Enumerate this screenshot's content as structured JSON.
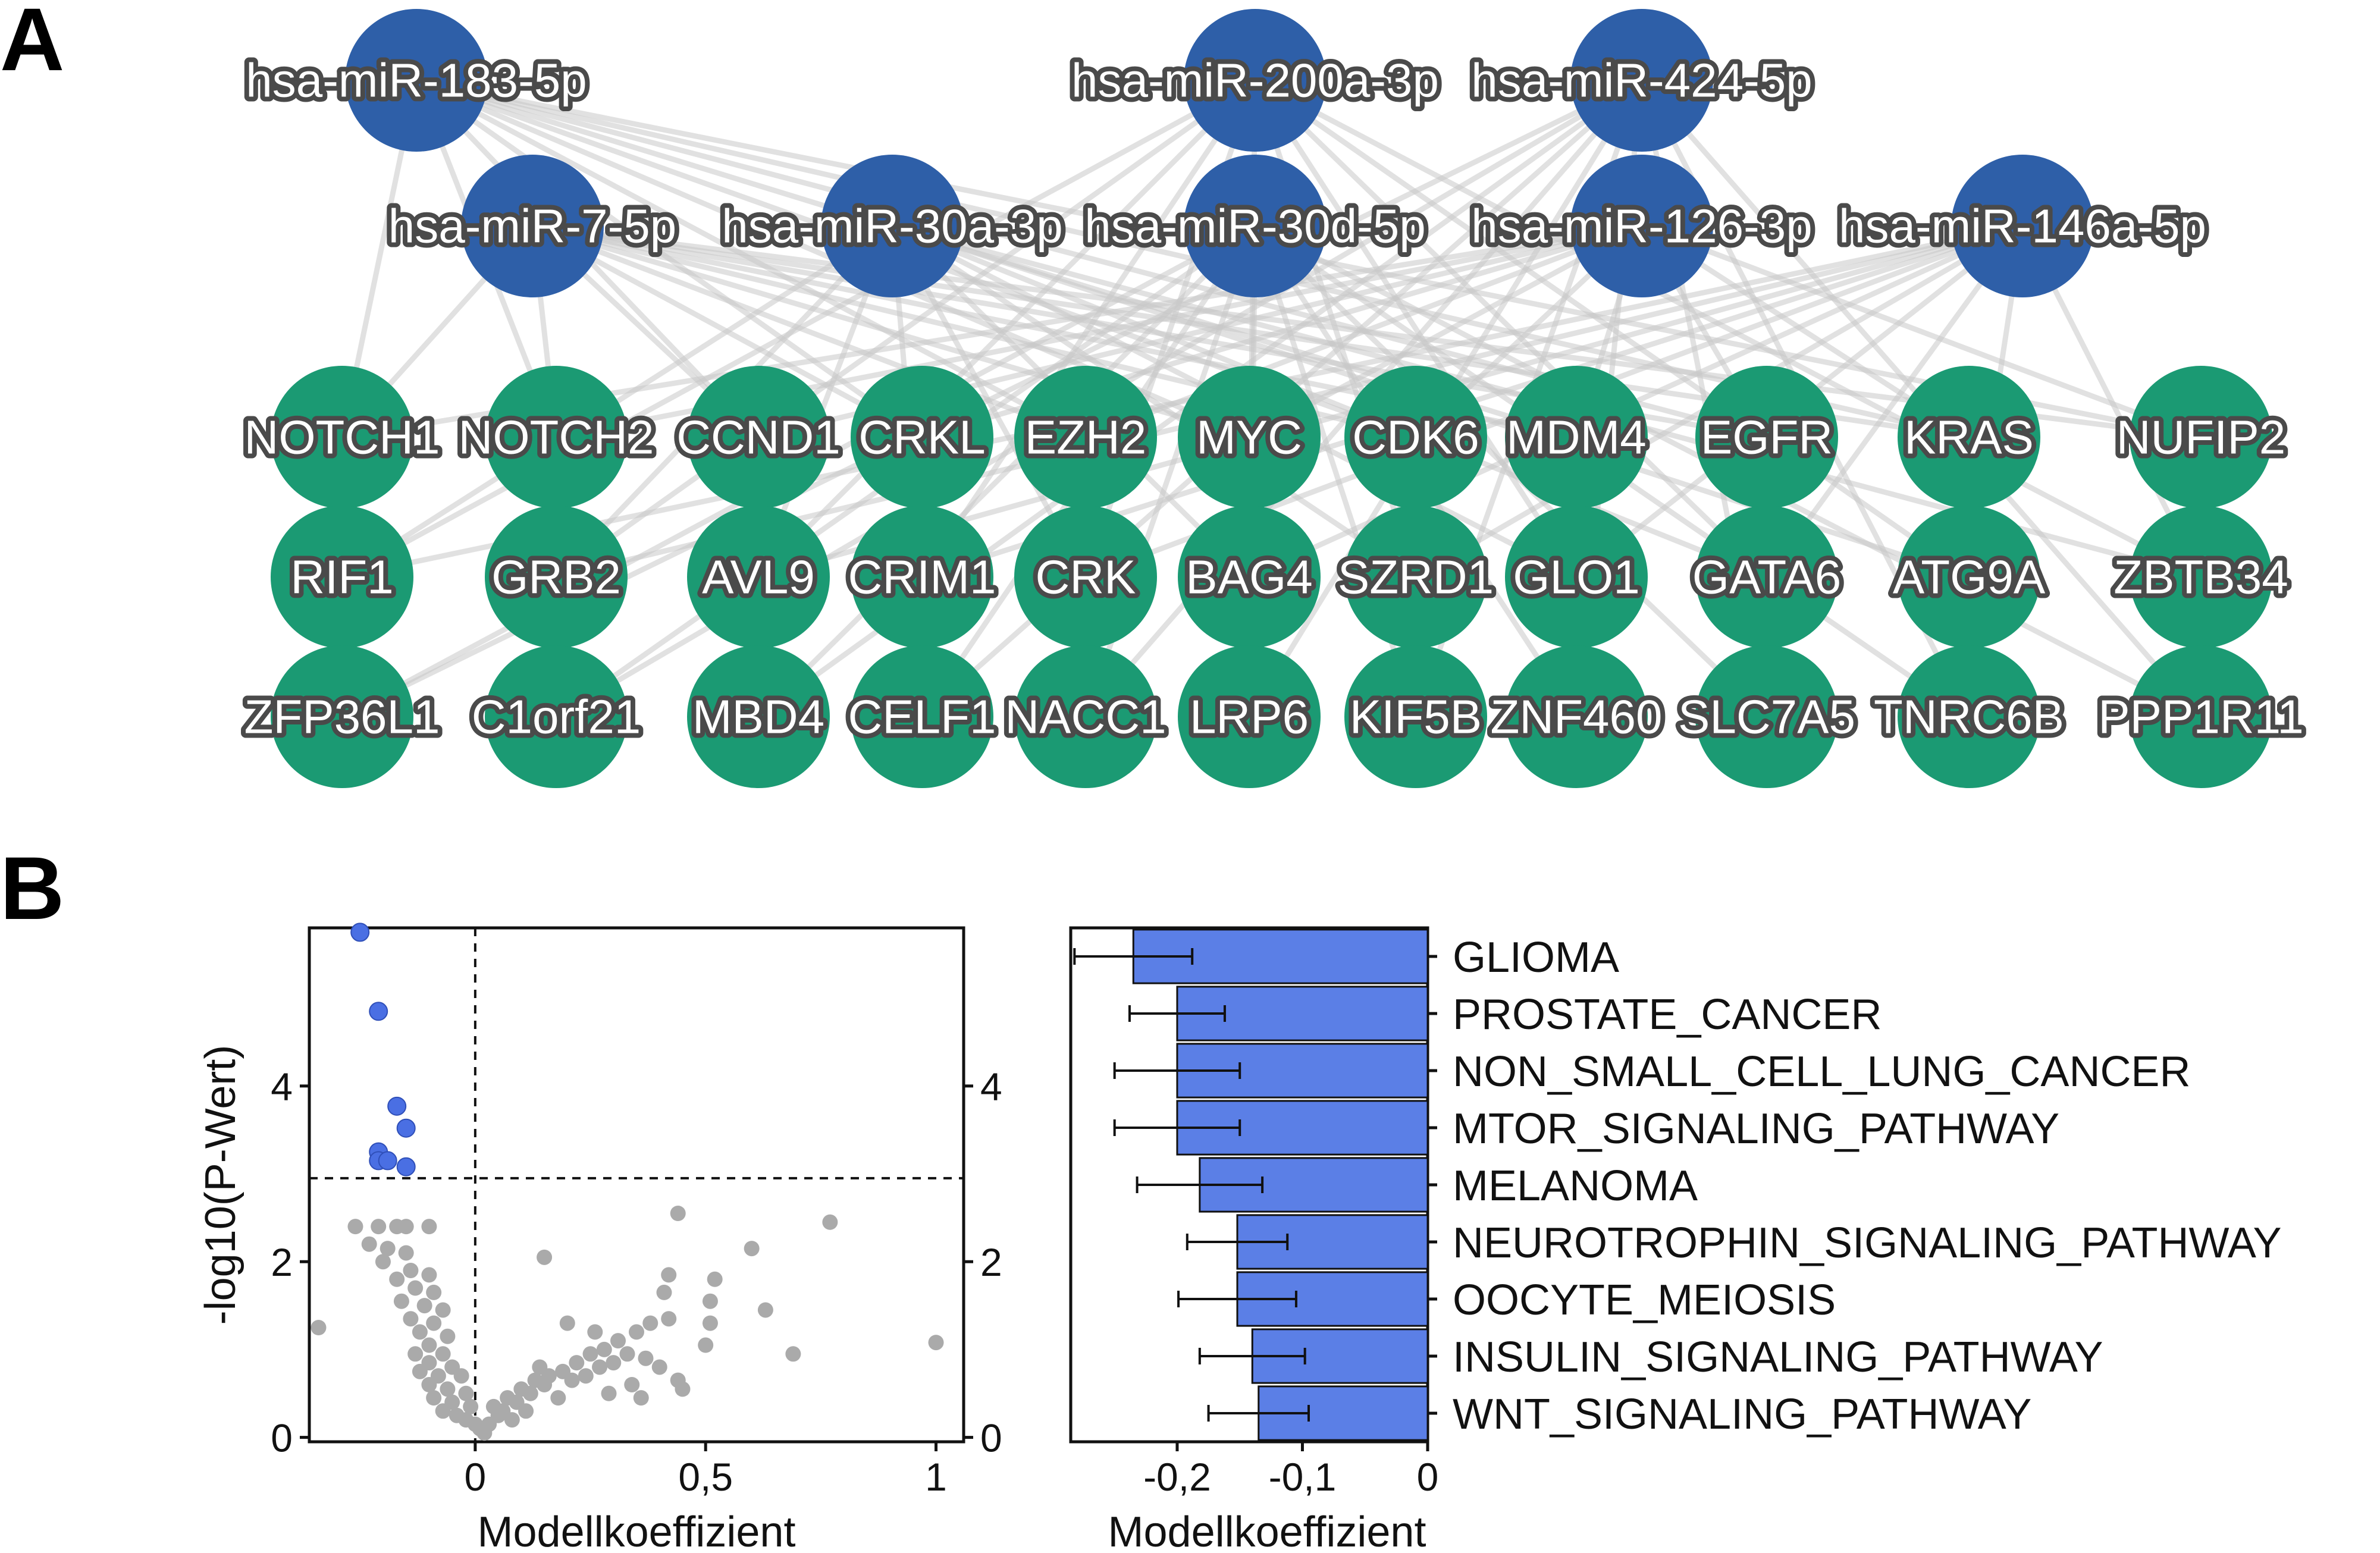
{
  "panels": {
    "a": "A",
    "b": "B"
  },
  "colors": {
    "mirna_node": "#2e5fa8",
    "gene_node": "#1b9a73",
    "edge": "#c8c8c8",
    "significant_point": "#4a6fe3",
    "nonsignificant_point": "#aaaaaa",
    "bar": "#5b7fe6"
  },
  "network": {
    "mirna_nodes": [
      "hsa-miR-183-5p",
      "hsa-miR-200a-3p",
      "hsa-miR-424-5p",
      "hsa-miR-7-5p",
      "hsa-miR-30a-3p",
      "hsa-miR-30d-5p",
      "hsa-miR-126-3p",
      "hsa-miR-146a-5p"
    ],
    "gene_rows": [
      [
        "NOTCH1",
        "NOTCH2",
        "CCND1",
        "CRKL",
        "EZH2",
        "MYC",
        "CDK6",
        "MDM4",
        "EGFR",
        "KRAS",
        "NUFIP2"
      ],
      [
        "RIF1",
        "GRB2",
        "AVL9",
        "CRIM1",
        "CRK",
        "BAG4",
        "SZRD1",
        "GLO1",
        "GATA6",
        "ATG9A",
        "ZBTB34"
      ],
      [
        "ZFP36L1",
        "C1orf21",
        "MBD4",
        "CELF1",
        "NACC1",
        "LRP6",
        "KIF5B",
        "ZNF460",
        "SLC7A5",
        "TNRC6B",
        "PPP1R11"
      ]
    ]
  },
  "chart_data": [
    {
      "type": "scatter",
      "title": "",
      "xlabel": "Modellkoeffizient",
      "ylabel": "-log10(P-Wert)",
      "xlim": [
        -0.36,
        1.06
      ],
      "ylim": [
        -0.05,
        5.8
      ],
      "xticks": [
        0,
        0.5,
        1
      ],
      "xtick_labels": [
        "0",
        "0,5",
        "1"
      ],
      "yticks": [
        0,
        2,
        4
      ],
      "ytick_labels": [
        "0",
        "2",
        "4"
      ],
      "threshold_y": 2.95,
      "threshold_x": 0,
      "significant_points": [
        {
          "x": -0.25,
          "y": 5.75
        },
        {
          "x": -0.21,
          "y": 4.85
        },
        {
          "x": -0.17,
          "y": 3.77
        },
        {
          "x": -0.15,
          "y": 3.52
        },
        {
          "x": -0.21,
          "y": 3.25
        },
        {
          "x": -0.21,
          "y": 3.15
        },
        {
          "x": -0.19,
          "y": 3.15
        },
        {
          "x": -0.15,
          "y": 3.08
        }
      ],
      "other_points": [
        {
          "x": -0.34,
          "y": 1.25
        },
        {
          "x": -0.26,
          "y": 2.4
        },
        {
          "x": -0.21,
          "y": 2.4
        },
        {
          "x": -0.17,
          "y": 2.4
        },
        {
          "x": -0.15,
          "y": 2.4
        },
        {
          "x": -0.23,
          "y": 2.2
        },
        {
          "x": -0.19,
          "y": 2.15
        },
        {
          "x": -0.1,
          "y": 2.4
        },
        {
          "x": -0.15,
          "y": 2.1
        },
        {
          "x": -0.2,
          "y": 2.0
        },
        {
          "x": -0.14,
          "y": 1.9
        },
        {
          "x": -0.1,
          "y": 1.85
        },
        {
          "x": -0.17,
          "y": 1.8
        },
        {
          "x": -0.13,
          "y": 1.7
        },
        {
          "x": -0.09,
          "y": 1.65
        },
        {
          "x": -0.16,
          "y": 1.55
        },
        {
          "x": -0.11,
          "y": 1.5
        },
        {
          "x": -0.07,
          "y": 1.45
        },
        {
          "x": -0.14,
          "y": 1.35
        },
        {
          "x": -0.09,
          "y": 1.3
        },
        {
          "x": -0.12,
          "y": 1.2
        },
        {
          "x": -0.06,
          "y": 1.15
        },
        {
          "x": -0.1,
          "y": 1.05
        },
        {
          "x": -0.13,
          "y": 0.95
        },
        {
          "x": -0.07,
          "y": 0.95
        },
        {
          "x": -0.1,
          "y": 0.85
        },
        {
          "x": -0.05,
          "y": 0.8
        },
        {
          "x": -0.12,
          "y": 0.75
        },
        {
          "x": -0.08,
          "y": 0.7
        },
        {
          "x": -0.03,
          "y": 0.7
        },
        {
          "x": -0.1,
          "y": 0.6
        },
        {
          "x": -0.06,
          "y": 0.55
        },
        {
          "x": -0.02,
          "y": 0.5
        },
        {
          "x": -0.09,
          "y": 0.45
        },
        {
          "x": -0.05,
          "y": 0.4
        },
        {
          "x": -0.01,
          "y": 0.35
        },
        {
          "x": -0.07,
          "y": 0.3
        },
        {
          "x": -0.04,
          "y": 0.25
        },
        {
          "x": -0.02,
          "y": 0.2
        },
        {
          "x": 0.0,
          "y": 0.15
        },
        {
          "x": 0.01,
          "y": 0.1
        },
        {
          "x": 0.02,
          "y": 0.05
        },
        {
          "x": 0.03,
          "y": 0.15
        },
        {
          "x": 0.05,
          "y": 0.25
        },
        {
          "x": 0.04,
          "y": 0.35
        },
        {
          "x": 0.06,
          "y": 0.3
        },
        {
          "x": 0.07,
          "y": 0.45
        },
        {
          "x": 0.09,
          "y": 0.4
        },
        {
          "x": 0.1,
          "y": 0.55
        },
        {
          "x": 0.12,
          "y": 0.5
        },
        {
          "x": 0.13,
          "y": 0.65
        },
        {
          "x": 0.15,
          "y": 0.6
        },
        {
          "x": 0.16,
          "y": 0.7
        },
        {
          "x": 0.18,
          "y": 0.45
        },
        {
          "x": 0.19,
          "y": 0.75
        },
        {
          "x": 0.21,
          "y": 0.65
        },
        {
          "x": 0.22,
          "y": 0.85
        },
        {
          "x": 0.24,
          "y": 0.7
        },
        {
          "x": 0.25,
          "y": 0.95
        },
        {
          "x": 0.27,
          "y": 0.8
        },
        {
          "x": 0.28,
          "y": 1.0
        },
        {
          "x": 0.3,
          "y": 0.85
        },
        {
          "x": 0.31,
          "y": 1.1
        },
        {
          "x": 0.33,
          "y": 0.95
        },
        {
          "x": 0.35,
          "y": 1.2
        },
        {
          "x": 0.37,
          "y": 0.9
        },
        {
          "x": 0.38,
          "y": 1.3
        },
        {
          "x": 0.4,
          "y": 0.8
        },
        {
          "x": 0.42,
          "y": 1.35
        },
        {
          "x": 0.44,
          "y": 0.65
        },
        {
          "x": 0.45,
          "y": 0.55
        },
        {
          "x": 0.14,
          "y": 0.8
        },
        {
          "x": 0.2,
          "y": 1.3
        },
        {
          "x": 0.29,
          "y": 0.5
        },
        {
          "x": 0.34,
          "y": 0.6
        },
        {
          "x": 0.08,
          "y": 0.2
        },
        {
          "x": 0.15,
          "y": 2.05
        },
        {
          "x": 0.41,
          "y": 1.65
        },
        {
          "x": 0.42,
          "y": 1.85
        },
        {
          "x": 0.44,
          "y": 2.55
        },
        {
          "x": 0.51,
          "y": 1.55
        },
        {
          "x": 0.51,
          "y": 1.3
        },
        {
          "x": 0.5,
          "y": 1.05
        },
        {
          "x": 0.52,
          "y": 1.8
        },
        {
          "x": 0.6,
          "y": 2.15
        },
        {
          "x": 0.63,
          "y": 1.45
        },
        {
          "x": 0.69,
          "y": 0.95
        },
        {
          "x": 0.77,
          "y": 2.45
        },
        {
          "x": 1.0,
          "y": 1.08
        },
        {
          "x": 0.36,
          "y": 0.45
        },
        {
          "x": 0.26,
          "y": 1.2
        },
        {
          "x": 0.11,
          "y": 0.3
        }
      ]
    },
    {
      "type": "bar",
      "orientation": "horizontal",
      "title": "",
      "xlabel": "Modellkoeffizient",
      "xlim": [
        -0.285,
        0
      ],
      "xticks": [
        -0.2,
        -0.1,
        0
      ],
      "xtick_labels": [
        "-0,2",
        "-0,1",
        "0"
      ],
      "categories": [
        "GLIOMA",
        "PROSTATE_CANCER",
        "NON_SMALL_CELL_LUNG_CANCER",
        "MTOR_SIGNALING_PATHWAY",
        "MELANOMA",
        "NEUROTROPHIN_SIGNALING_PATHWAY",
        "OOCYTE_MEIOSIS",
        "INSULIN_SIGNALING_PATHWAY",
        "WNT_SIGNALING_PATHWAY"
      ],
      "values": [
        -0.235,
        -0.2,
        -0.2,
        -0.2,
        -0.182,
        -0.152,
        -0.152,
        -0.14,
        -0.135
      ],
      "errors": [
        0.047,
        0.038,
        0.05,
        0.05,
        0.05,
        0.04,
        0.047,
        0.042,
        0.04
      ]
    }
  ]
}
